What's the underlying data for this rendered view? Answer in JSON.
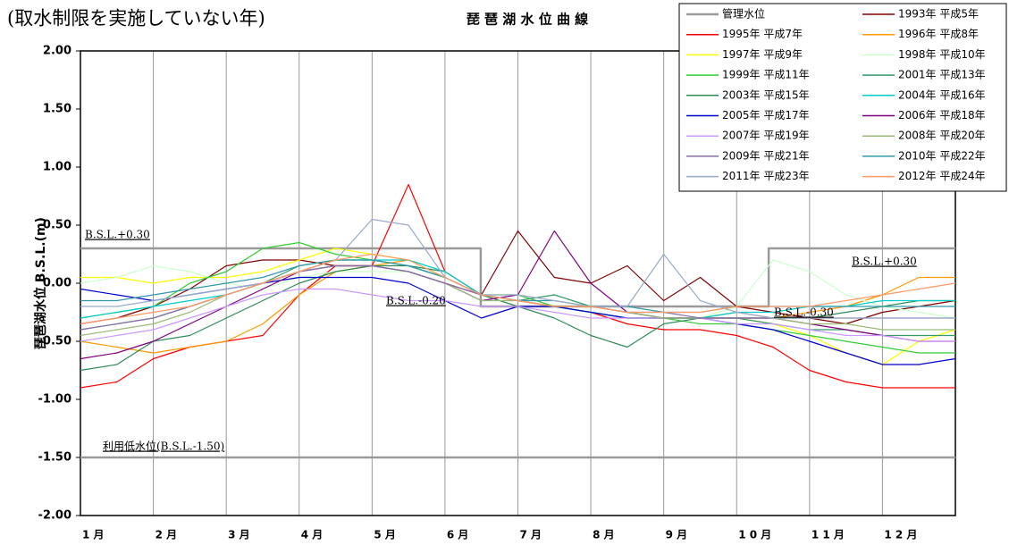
{
  "chart_data": {
    "type": "line",
    "subtitle": "(取水制限を実施していない年)",
    "title": "琵 琶 湖 水 位 曲 線",
    "y_label": "琵琶湖水位 B.S.L.(m)",
    "xlim": [
      0,
      12
    ],
    "xticks": [
      {
        "value": 0,
        "label": "1 月"
      },
      {
        "value": 1,
        "label": "2 月"
      },
      {
        "value": 2,
        "label": "3 月"
      },
      {
        "value": 3,
        "label": "4 月"
      },
      {
        "value": 4,
        "label": "5 月"
      },
      {
        "value": 5,
        "label": "6 月"
      },
      {
        "value": 6,
        "label": "7 月"
      },
      {
        "value": 7,
        "label": "8 月"
      },
      {
        "value": 8,
        "label": "9 月"
      },
      {
        "value": 9,
        "label": "1 0 月"
      },
      {
        "value": 10,
        "label": "1 1 月"
      },
      {
        "value": 11,
        "label": "1 2 月"
      }
    ],
    "ylim": [
      -2,
      2
    ],
    "yticks": [
      {
        "value": 2,
        "label": "2.00"
      },
      {
        "value": 1.5,
        "label": "1.50"
      },
      {
        "value": 1,
        "label": "1.00"
      },
      {
        "value": 0.5,
        "label": "0.50"
      },
      {
        "value": 0,
        "label": "0.00"
      },
      {
        "value": -0.5,
        "label": "-0.50"
      },
      {
        "value": -1,
        "label": "-1.00"
      },
      {
        "value": -1.5,
        "label": "-1.50"
      },
      {
        "value": -2,
        "label": "-2.00"
      }
    ],
    "grid": true,
    "legend": "top-right",
    "x": [
      0,
      0.5,
      1,
      1.5,
      2,
      2.5,
      3,
      3.5,
      4,
      4.5,
      5,
      5.5,
      6,
      6.5,
      7,
      7.5,
      8,
      8.5,
      9,
      9.5,
      10,
      10.5,
      11,
      11.5,
      12
    ],
    "series": [
      {
        "name": "管理水位",
        "color": "#9a9a9a",
        "x": [
          0,
          5.49,
          5.49,
          9.44,
          9.44,
          12
        ],
        "values": [
          0.3,
          0.3,
          -0.2,
          -0.2,
          0.3,
          0.3
        ]
      },
      {
        "name": "1993年 平成5年",
        "color": "#800000",
        "values": [
          -0.35,
          -0.3,
          -0.2,
          -0.05,
          0.15,
          0.2,
          0.2,
          0.15,
          0.15,
          0.1,
          0.0,
          -0.1,
          0.45,
          0.05,
          0.0,
          0.15,
          -0.15,
          0.05,
          -0.2,
          -0.25,
          -0.3,
          -0.35,
          -0.25,
          -0.2,
          -0.15
        ]
      },
      {
        "name": "1995年 平成7年",
        "color": "#ff0000",
        "values": [
          -0.9,
          -0.85,
          -0.65,
          -0.55,
          -0.5,
          -0.45,
          -0.1,
          0.15,
          0.15,
          0.85,
          0.1,
          -0.1,
          -0.15,
          -0.2,
          -0.25,
          -0.35,
          -0.4,
          -0.4,
          -0.45,
          -0.55,
          -0.75,
          -0.85,
          -0.9,
          -0.9,
          -0.9
        ]
      },
      {
        "name": "1996年 平成8年",
        "color": "#ff9900",
        "values": [
          -0.5,
          -0.55,
          -0.6,
          -0.55,
          -0.5,
          -0.35,
          -0.1,
          0.1,
          0.15,
          0.2,
          0.05,
          -0.1,
          -0.15,
          -0.2,
          -0.25,
          -0.3,
          -0.3,
          -0.3,
          -0.25,
          -0.3,
          -0.25,
          -0.2,
          -0.1,
          0.05,
          0.05
        ]
      },
      {
        "name": "1997年 平成9年",
        "color": "#ffff00",
        "values": [
          0.05,
          0.05,
          0.0,
          0.05,
          0.05,
          0.1,
          0.2,
          0.3,
          0.25,
          0.2,
          0.05,
          -0.1,
          -0.15,
          -0.2,
          -0.2,
          -0.25,
          -0.3,
          -0.3,
          -0.3,
          -0.35,
          -0.45,
          -0.6,
          -0.7,
          -0.5,
          -0.4
        ]
      },
      {
        "name": "1998年 平成10年",
        "color": "#ccffcc",
        "values": [
          0.0,
          0.05,
          0.15,
          0.1,
          0.0,
          -0.05,
          0.05,
          0.1,
          0.1,
          0.1,
          0.0,
          -0.15,
          -0.15,
          -0.15,
          -0.2,
          -0.25,
          -0.25,
          -0.3,
          -0.2,
          0.2,
          0.1,
          -0.1,
          -0.2,
          -0.25,
          -0.3
        ]
      },
      {
        "name": "1999年 平成11年",
        "color": "#33cc33",
        "values": [
          -0.3,
          -0.25,
          -0.2,
          0.0,
          0.1,
          0.3,
          0.35,
          0.25,
          0.2,
          0.15,
          0.05,
          -0.1,
          -0.1,
          -0.2,
          -0.25,
          -0.3,
          -0.3,
          -0.35,
          -0.35,
          -0.4,
          -0.45,
          -0.5,
          -0.55,
          -0.6,
          -0.6
        ]
      },
      {
        "name": "2001年 平成13年",
        "color": "#339966",
        "values": [
          -0.4,
          -0.35,
          -0.3,
          -0.2,
          -0.1,
          0.0,
          0.15,
          0.2,
          0.2,
          0.15,
          0.05,
          -0.1,
          -0.15,
          -0.1,
          -0.2,
          -0.25,
          -0.3,
          -0.3,
          -0.3,
          -0.35,
          -0.4,
          -0.4,
          -0.45,
          -0.45,
          -0.45
        ]
      },
      {
        "name": "2003年 平成15年",
        "color": "#2e8b57",
        "values": [
          -0.75,
          -0.7,
          -0.5,
          -0.45,
          -0.3,
          -0.15,
          0.0,
          0.1,
          0.15,
          0.15,
          0.1,
          -0.1,
          -0.2,
          -0.3,
          -0.45,
          -0.55,
          -0.35,
          -0.3,
          -0.3,
          -0.3,
          -0.3,
          -0.25,
          -0.2,
          -0.15,
          -0.15
        ]
      },
      {
        "name": "2004年 平成16年",
        "color": "#00cccc",
        "values": [
          -0.3,
          -0.25,
          -0.2,
          -0.15,
          -0.1,
          0.0,
          0.1,
          0.2,
          0.2,
          0.2,
          0.1,
          -0.1,
          -0.15,
          -0.2,
          -0.25,
          -0.3,
          -0.3,
          -0.3,
          -0.25,
          -0.25,
          -0.2,
          -0.2,
          -0.15,
          -0.15,
          -0.15
        ]
      },
      {
        "name": "2005年 平成17年",
        "color": "#0000cc",
        "values": [
          -0.05,
          -0.1,
          -0.15,
          -0.1,
          -0.05,
          0.0,
          0.05,
          0.05,
          0.05,
          0.0,
          -0.15,
          -0.3,
          -0.2,
          -0.2,
          -0.25,
          -0.3,
          -0.3,
          -0.3,
          -0.35,
          -0.4,
          -0.5,
          -0.6,
          -0.7,
          -0.7,
          -0.65
        ]
      },
      {
        "name": "2006年 平成18年",
        "color": "#800080",
        "values": [
          -0.65,
          -0.6,
          -0.5,
          -0.35,
          -0.2,
          -0.05,
          0.1,
          0.15,
          0.15,
          0.1,
          0.0,
          -0.15,
          -0.1,
          0.45,
          0.0,
          -0.25,
          -0.3,
          -0.3,
          -0.3,
          -0.3,
          -0.35,
          -0.4,
          -0.45,
          -0.5,
          -0.5
        ]
      },
      {
        "name": "2007年 平成19年",
        "color": "#cc99ff",
        "values": [
          -0.5,
          -0.45,
          -0.4,
          -0.3,
          -0.2,
          -0.1,
          -0.05,
          -0.05,
          -0.1,
          -0.15,
          -0.15,
          -0.2,
          -0.2,
          -0.25,
          -0.3,
          -0.3,
          -0.3,
          -0.3,
          -0.35,
          -0.35,
          -0.4,
          -0.45,
          -0.45,
          -0.5,
          -0.5
        ]
      },
      {
        "name": "2008年 平成20年",
        "color": "#99bb77",
        "values": [
          -0.45,
          -0.4,
          -0.35,
          -0.25,
          -0.1,
          0.0,
          0.1,
          0.15,
          0.15,
          0.1,
          0.0,
          -0.15,
          -0.15,
          -0.2,
          -0.2,
          -0.25,
          -0.3,
          -0.3,
          -0.3,
          -0.3,
          -0.35,
          -0.35,
          -0.4,
          -0.4,
          -0.4
        ]
      },
      {
        "name": "2009年 平成21年",
        "color": "#8a6fa8",
        "values": [
          -0.4,
          -0.35,
          -0.3,
          -0.2,
          -0.1,
          0.0,
          0.1,
          0.15,
          0.15,
          0.1,
          0.0,
          -0.1,
          -0.15,
          -0.2,
          -0.2,
          -0.25,
          -0.25,
          -0.3,
          -0.3,
          -0.3,
          -0.3,
          -0.3,
          -0.3,
          -0.3,
          -0.3
        ]
      },
      {
        "name": "2010年 平成22年",
        "color": "#3399aa",
        "values": [
          -0.15,
          -0.15,
          -0.1,
          -0.05,
          0.0,
          0.05,
          0.15,
          0.2,
          0.2,
          0.15,
          0.05,
          -0.1,
          -0.15,
          -0.15,
          -0.2,
          -0.2,
          -0.25,
          -0.25,
          -0.2,
          -0.2,
          -0.2,
          -0.2,
          -0.2,
          -0.2,
          -0.2
        ]
      },
      {
        "name": "2011年 平成23年",
        "color": "#99aacc",
        "values": [
          -0.2,
          -0.2,
          -0.15,
          -0.1,
          -0.05,
          0.0,
          0.1,
          0.2,
          0.55,
          0.5,
          0.05,
          -0.1,
          -0.1,
          -0.15,
          -0.2,
          -0.2,
          0.25,
          -0.15,
          -0.25,
          -0.3,
          -0.3,
          -0.3,
          -0.3,
          -0.3,
          -0.3
        ]
      },
      {
        "name": "2012年 平成24年",
        "color": "#ff9966",
        "values": [
          -0.35,
          -0.3,
          -0.25,
          -0.2,
          -0.1,
          0.0,
          0.1,
          0.2,
          0.25,
          0.2,
          0.05,
          -0.1,
          -0.15,
          -0.2,
          -0.2,
          -0.25,
          -0.25,
          -0.25,
          -0.2,
          -0.2,
          -0.2,
          -0.15,
          -0.1,
          -0.05,
          0.0
        ]
      }
    ],
    "reference_lines": [
      {
        "value": -1.5,
        "label": "利用低水位(B.S.L.-1.50)",
        "color": "#9a9a9a"
      }
    ],
    "annotations": [
      "B.S.L.+0.30",
      "B.S.L.-0.20",
      "B.S.L.-0.30",
      "B.S.L.+0.30"
    ]
  }
}
